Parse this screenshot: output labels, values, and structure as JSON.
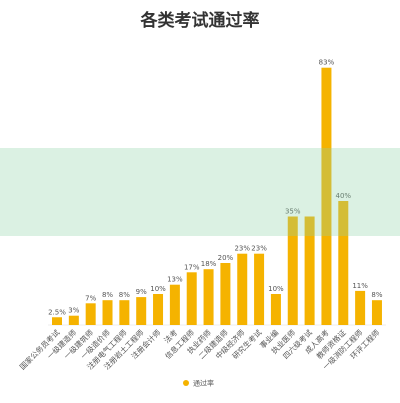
{
  "chart_data": {
    "type": "bar",
    "title": "各类考试通过率",
    "categories": [
      "国家公务员考试",
      "一级建造师",
      "一级建筑师",
      "一级造价师",
      "注册电气工程师",
      "注册岩土工程师",
      "注册会计师",
      "法考",
      "信息工程师",
      "执业药师",
      "二级建造师",
      "中级经济师",
      "研究生考试",
      "事业编",
      "执业医师",
      "四六级考试",
      "成人高考",
      "教师资格证",
      "一级消防工程师",
      "环评工程师"
    ],
    "series": [
      {
        "name": "通过率",
        "values": [
          2.5,
          3,
          7,
          8,
          8,
          9,
          10,
          13,
          17,
          18,
          20,
          23,
          23,
          10,
          35,
          35,
          83,
          40,
          11,
          8
        ],
        "value_labels": [
          "2.5%",
          "3%",
          "7%",
          "8%",
          "8%",
          "9%",
          "10%",
          "13%",
          "17%",
          "18%",
          "20%",
          "23%",
          "23%",
          "10%",
          "35%",
          "",
          "83%",
          "40%",
          "11%",
          "8%"
        ]
      }
    ],
    "ylim": [
      0,
      90
    ],
    "grid": false,
    "legend": {
      "position": "bottom",
      "entries": [
        "通过率"
      ]
    },
    "bar_color": "#F5B300"
  }
}
